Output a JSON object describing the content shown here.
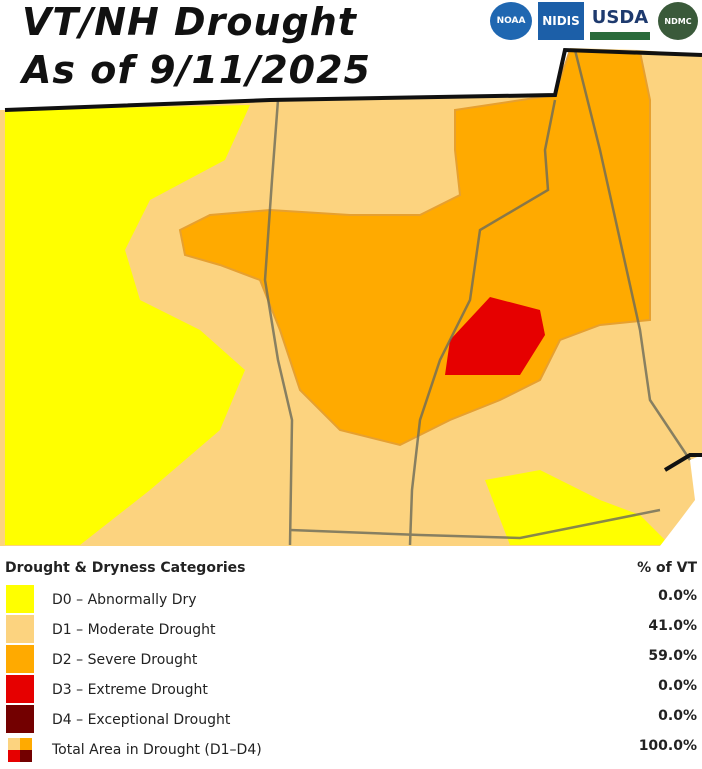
{
  "header": {
    "title_line1": "VT/NH Drought",
    "title_line2": "As of 9/11/2025"
  },
  "logos": [
    "NOAA",
    "NIDIS",
    "USDA",
    "NDMC"
  ],
  "legend": {
    "title": "Drought & Dryness Categories",
    "column_header": "% of VT",
    "rows": [
      {
        "label": "D0 – Abnormally Dry",
        "percent": "0.0%",
        "color": "#ffff00"
      },
      {
        "label": "D1 – Moderate Drought",
        "percent": "41.0%",
        "color": "#fcd37f"
      },
      {
        "label": "D2 – Severe Drought",
        "percent": "59.0%",
        "color": "#ffaa00"
      },
      {
        "label": "D3 – Extreme Drought",
        "percent": "0.0%",
        "color": "#e60000"
      },
      {
        "label": "D4 – Exceptional Drought",
        "percent": "0.0%",
        "color": "#730000"
      }
    ],
    "total": {
      "label": "Total Area in Drought (D1–D4)",
      "percent": "100.0%"
    }
  }
}
